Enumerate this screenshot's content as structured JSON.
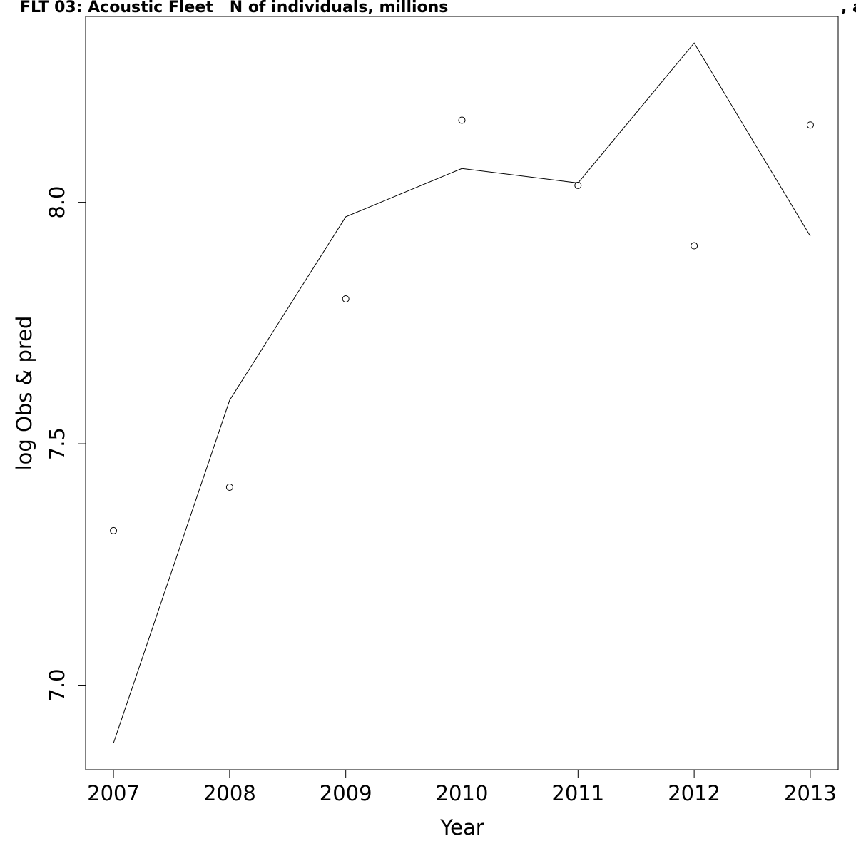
{
  "title_left": "FLT 03: Acoustic Fleet   N of individuals, millions",
  "title_right": ", a",
  "chart_data": {
    "type": "line",
    "xlabel": "Year",
    "ylabel": "log Obs & pred",
    "xlim": [
      2006.76,
      2013.24
    ],
    "ylim": [
      6.825,
      8.385
    ],
    "x_ticks": [
      "2007",
      "2008",
      "2009",
      "2010",
      "2011",
      "2012",
      "2013"
    ],
    "y_ticks": [
      "7.0",
      "7.5",
      "8.0"
    ],
    "x": [
      2007,
      2008,
      2009,
      2010,
      2011,
      2012,
      2013
    ],
    "series": [
      {
        "style": "points",
        "values": [
          7.32,
          7.41,
          7.8,
          8.17,
          8.035,
          7.91,
          8.16
        ]
      },
      {
        "style": "line",
        "values": [
          6.88,
          7.59,
          7.97,
          8.07,
          8.04,
          8.33,
          7.93
        ]
      }
    ],
    "grid": false,
    "legend": "none"
  }
}
